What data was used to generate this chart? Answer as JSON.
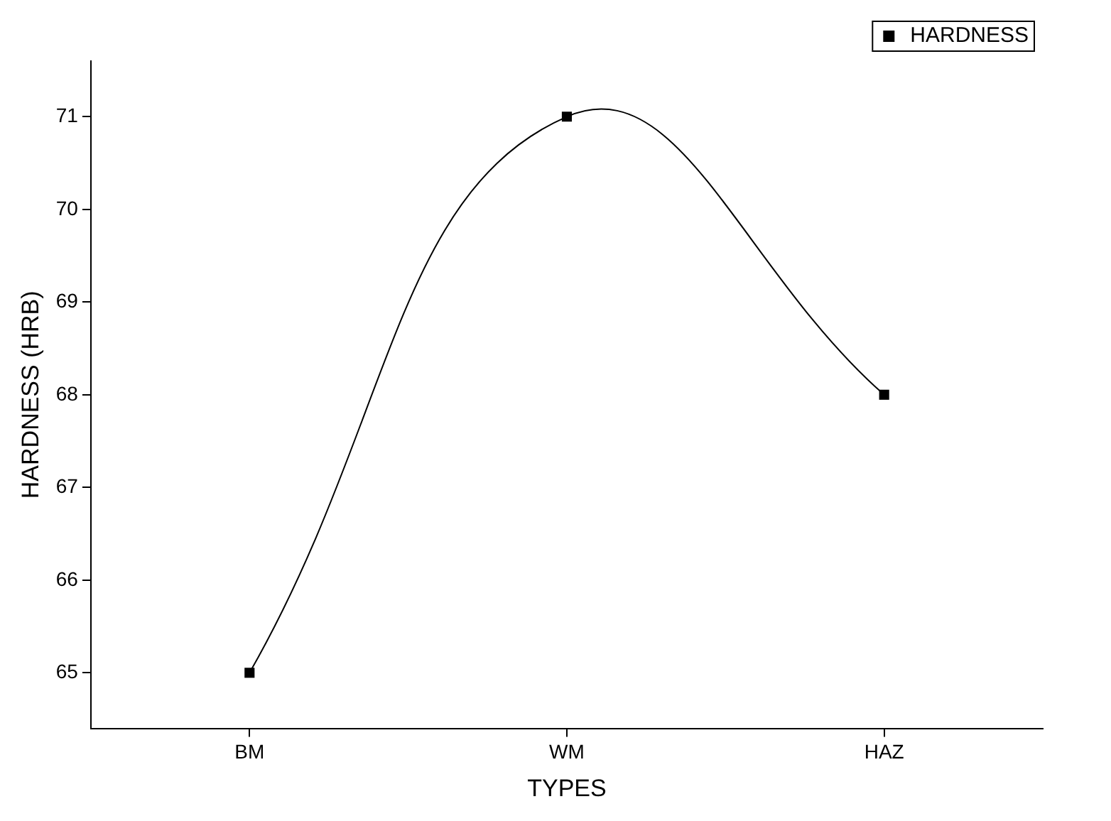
{
  "chart_data": {
    "type": "line",
    "xlabel": "TYPES",
    "ylabel": "HARDNESS (HRB)",
    "categories": [
      "BM",
      "WM",
      "HAZ"
    ],
    "series": [
      {
        "name": "HARDNESS",
        "color": "#000000",
        "values": [
          65,
          71,
          68
        ]
      }
    ],
    "ylim": [
      64.4,
      71.6
    ],
    "yticks": [
      65,
      66,
      67,
      68,
      69,
      70,
      71
    ],
    "grid": false,
    "legend": "top right",
    "marker": "square",
    "line_style": "solid"
  }
}
